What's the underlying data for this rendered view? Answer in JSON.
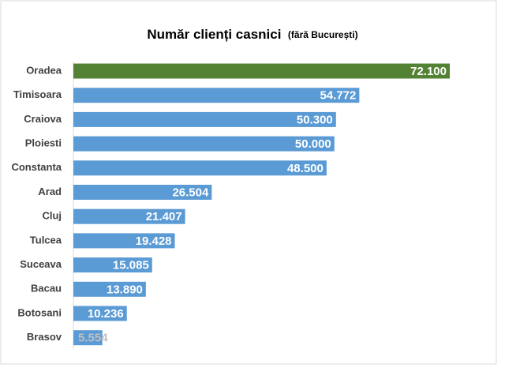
{
  "chart_data": {
    "type": "bar",
    "orientation": "horizontal",
    "title": "Număr clienți casnici",
    "subtitle": "(fără București)",
    "categories": [
      "Oradea",
      "Timisoara",
      "Craiova",
      "Ploiesti",
      "Constanta",
      "Arad",
      "Cluj",
      "Tulcea",
      "Suceava",
      "Bacau",
      "Botosani",
      "Brasov"
    ],
    "values": [
      72100,
      54772,
      50300,
      50000,
      48500,
      26504,
      21407,
      19428,
      15085,
      13890,
      10236,
      5554
    ],
    "value_labels": [
      "72.100",
      "54.772",
      "50.300",
      "50.000",
      "48.500",
      "26.504",
      "21.407",
      "19.428",
      "15.085",
      "13.890",
      "10.236",
      "5.554"
    ],
    "colors": [
      "#548235",
      "#5b9bd5",
      "#5b9bd5",
      "#5b9bd5",
      "#5b9bd5",
      "#5b9bd5",
      "#5b9bd5",
      "#5b9bd5",
      "#5b9bd5",
      "#5b9bd5",
      "#5b9bd5",
      "#5b9bd5"
    ]
  }
}
